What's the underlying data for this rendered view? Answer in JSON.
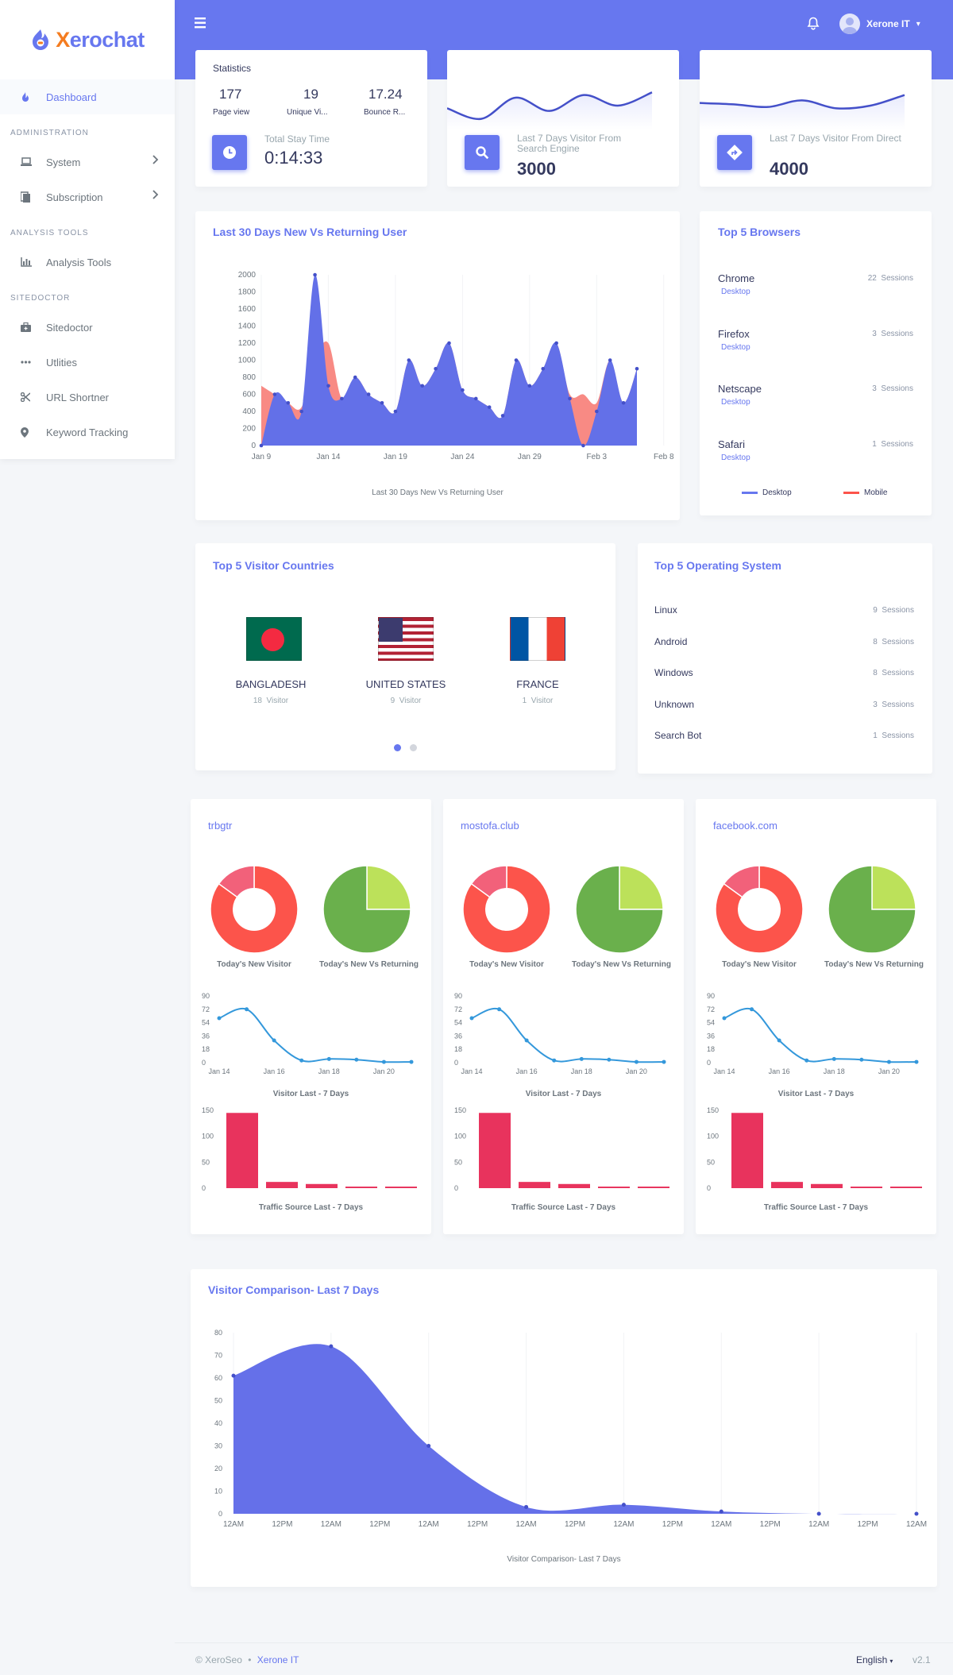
{
  "app": {
    "brand_prefix": "X",
    "brand_rest": "erochat"
  },
  "topbar": {
    "user_name": "Xerone IT",
    "user_caret": "▾"
  },
  "sidebar": {
    "dashboard": "Dashboard",
    "headers": [
      "ADMINISTRATION",
      "ANALYSIS TOOLS",
      "SITEDOCTOR"
    ],
    "items": [
      "System",
      "Subscription",
      "Analysis Tools",
      "Sitedoctor",
      "Utlities",
      "URL Shortner",
      "Keyword Tracking"
    ]
  },
  "stats": {
    "title": "Statistics",
    "page_view": "177",
    "page_view_label": "Page view",
    "unique_visitor": "19",
    "unique_visitor_label": "Unique Vi...",
    "bounce_rate": "17.24",
    "bounce_rate_label": "Bounce R...",
    "stay_label": "Total Stay Time",
    "stay_value": "0:14:33"
  },
  "search_card": {
    "label": "Last 7 Days Visitor From Search Engine",
    "value": "3000"
  },
  "direct_card": {
    "label": "Last 7 Days Visitor From Direct",
    "value": "4000"
  },
  "main_chart": {
    "title": "Last 30 Days New Vs Returning User",
    "caption": "Last 30 Days New Vs Returning User"
  },
  "browsers": {
    "title": "Top 5 Browsers",
    "items": [
      {
        "name": "Chrome",
        "sessions": "22",
        "type": "Desktop"
      },
      {
        "name": "Firefox",
        "sessions": "3",
        "type": "Desktop"
      },
      {
        "name": "Netscape",
        "sessions": "3",
        "type": "Desktop"
      },
      {
        "name": "Safari",
        "sessions": "1",
        "type": "Desktop"
      }
    ],
    "sessions_word": "Sessions",
    "legend_desktop": "Desktop",
    "legend_mobile": "Mobile"
  },
  "countries": {
    "title": "Top 5 Visitor Countries",
    "items": [
      {
        "name": "BANGLADESH",
        "count": "18"
      },
      {
        "name": "UNITED STATES",
        "count": "9"
      },
      {
        "name": "FRANCE",
        "count": "1"
      }
    ],
    "visitor_word": "Visitor"
  },
  "os": {
    "title": "Top 5 Operating System",
    "items": [
      {
        "name": "Linux",
        "sessions": "9"
      },
      {
        "name": "Android",
        "sessions": "8"
      },
      {
        "name": "Windows",
        "sessions": "8"
      },
      {
        "name": "Unknown",
        "sessions": "3"
      },
      {
        "name": "Search Bot",
        "sessions": "1"
      }
    ],
    "sessions_word": "Sessions"
  },
  "sites": {
    "names": [
      "trbgtr",
      "mostofa.club",
      "facebook.com"
    ],
    "new_visitor_label": "Today's New Visitor",
    "new_vs_returning_label": "Today's New Vs Returning",
    "visitor_chart_label": "Visitor Last - 7 Days",
    "traffic_chart_label": "Traffic Source Last - 7 Days"
  },
  "comparison": {
    "title": "Visitor Comparison- Last 7 Days",
    "caption": "Visitor Comparison- Last 7 Days"
  },
  "footer": {
    "copyright": "© XeroSeo",
    "dot": "•",
    "company": "Xerone IT",
    "language": "English",
    "version": "v2.1"
  },
  "colors": {
    "accent": "#6777ef",
    "mobile": "#fc544b",
    "pie_new": "#fc544b",
    "pie_returning": "#bce15a",
    "visitor_line": "#3498db",
    "traffic_bar": "#e8335d"
  },
  "chart_data": [
    {
      "type": "area",
      "title": "Last 30 Days New Vs Returning User",
      "x_ticks": [
        "Jan 9",
        "Jan 14",
        "Jan 19",
        "Jan 24",
        "Jan 29",
        "Feb 3",
        "Feb 8"
      ],
      "ylim": [
        0,
        2000
      ],
      "y_ticks": [
        0,
        200,
        400,
        600,
        800,
        1000,
        1200,
        1400,
        1600,
        1800,
        2000
      ],
      "series": [
        {
          "name": "Desktop",
          "values": [
            0,
            600,
            500,
            400,
            2000,
            700,
            550,
            800,
            600,
            500,
            400,
            1000,
            700,
            900,
            1200,
            650,
            550,
            450,
            350,
            1000,
            700,
            900,
            1200,
            550,
            0,
            400,
            1000,
            500,
            900
          ]
        },
        {
          "name": "Mobile",
          "values": [
            700,
            600,
            500,
            450,
            1000,
            1200,
            550,
            800,
            600,
            500,
            400,
            1000,
            700,
            900,
            1200,
            650,
            550,
            450,
            350,
            1000,
            700,
            900,
            1200,
            600,
            600,
            500,
            1000,
            500,
            900
          ]
        }
      ]
    },
    {
      "type": "line",
      "x": [
        0,
        1,
        2,
        3,
        4,
        5,
        6
      ],
      "values": [
        200,
        160,
        240,
        190,
        250,
        210,
        260
      ]
    },
    {
      "type": "line",
      "x": [
        0,
        1,
        2,
        3,
        4,
        5,
        6
      ],
      "values": [
        220,
        215,
        205,
        230,
        200,
        210,
        250
      ]
    },
    {
      "type": "pie",
      "labels": [
        "new",
        "returning"
      ],
      "donut": true,
      "values": [
        85,
        15
      ]
    },
    {
      "type": "pie",
      "labels": [
        "new",
        "returning"
      ],
      "values": [
        25,
        75
      ]
    },
    {
      "type": "line",
      "x_ticks": [
        "Jan 14",
        "Jan 16",
        "Jan 18",
        "Jan 20"
      ],
      "y_ticks": [
        0,
        18,
        36,
        54,
        72,
        90
      ],
      "ylim": [
        0,
        90
      ],
      "values": [
        60,
        72,
        30,
        3,
        5,
        4,
        1,
        1
      ]
    },
    {
      "type": "bar",
      "y_ticks": [
        0,
        50,
        100,
        150
      ],
      "ylim": [
        0,
        150
      ],
      "values": [
        145,
        12,
        8,
        3,
        3
      ]
    },
    {
      "type": "area",
      "title": "Visitor Comparison- Last 7 Days",
      "x_ticks": [
        "12AM",
        "12PM",
        "12AM",
        "12PM",
        "12AM",
        "12PM",
        "12AM",
        "12PM",
        "12AM",
        "12PM",
        "12AM",
        "12PM",
        "12AM",
        "12PM",
        "12AM"
      ],
      "y_ticks": [
        0,
        10,
        20,
        30,
        40,
        50,
        60,
        70,
        80
      ],
      "ylim": [
        0,
        80
      ],
      "values": [
        61,
        74,
        30,
        3,
        4,
        1,
        0,
        0
      ]
    }
  ]
}
